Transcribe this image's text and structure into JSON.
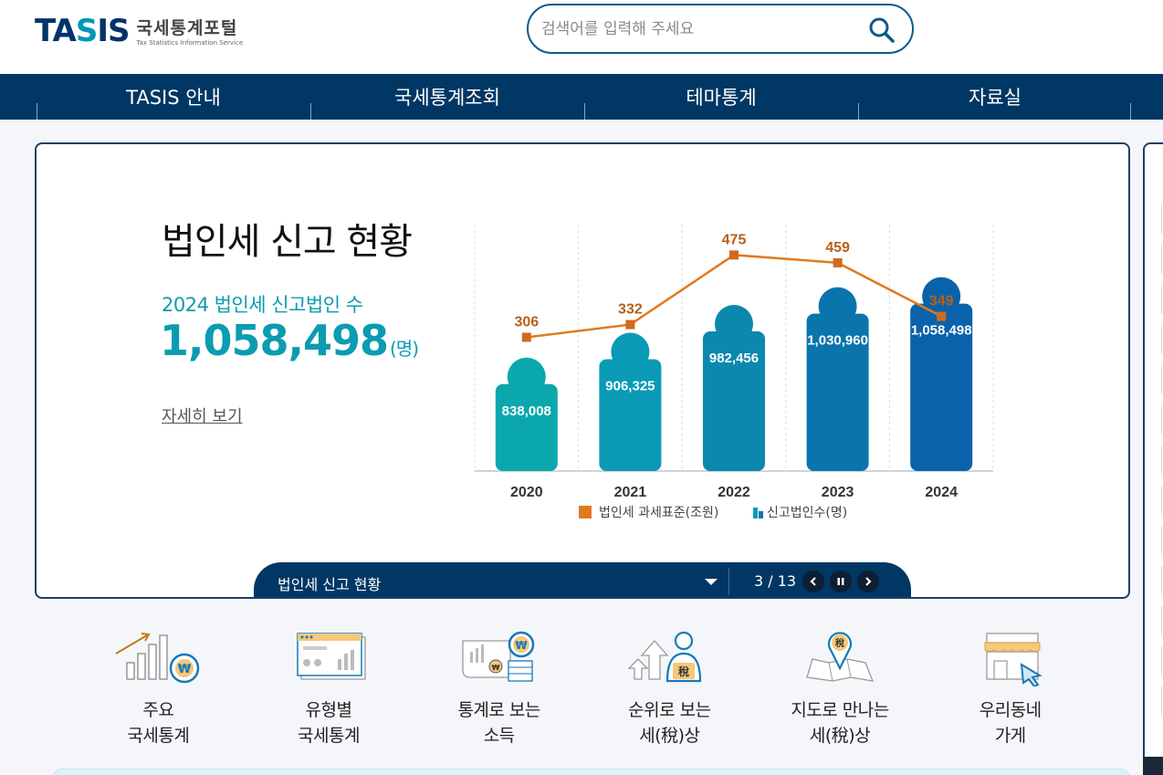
{
  "header": {
    "logo_mark_a": "TA",
    "logo_mark_b": "S",
    "logo_mark_c": "IS",
    "logo_ko": "국세통계포털",
    "logo_en": "Tax Statistics Information Service",
    "search_placeholder": "검색어를 입력해 주세요"
  },
  "nav": {
    "items": [
      {
        "label": "TASIS 안내"
      },
      {
        "label": "국세통계조회"
      },
      {
        "label": "테마통계"
      },
      {
        "label": "자료실"
      }
    ]
  },
  "banner": {
    "title": "법인세 신고 현황",
    "subtitle": "2024 법인세 신고법인 수",
    "value": "1,058,498",
    "unit": "(명)",
    "more_link": "자세히 보기"
  },
  "chart_data": {
    "type": "bar+line",
    "categories": [
      "2020",
      "2021",
      "2022",
      "2023",
      "2024"
    ],
    "series": [
      {
        "name": "신고법인수(명)",
        "kind": "bar",
        "values": [
          838008,
          906325,
          982456,
          1030960,
          1058498
        ],
        "labels": [
          "838,008",
          "906,325",
          "982,456",
          "1,030,960",
          "1,058,498"
        ]
      },
      {
        "name": "법인세 과세표준(조원)",
        "kind": "line",
        "values": [
          306,
          332,
          475,
          459,
          349
        ]
      }
    ],
    "legend_position": "bottom",
    "grid": "vertical dashed",
    "colors": {
      "line": "#e07a1f",
      "bars": [
        "#0aa8ad",
        "#0a9ab6",
        "#0a88ad",
        "#0a74ad",
        "#0a62aa"
      ]
    }
  },
  "slider": {
    "title": "법인세 신고 현황",
    "counter": "3 / 13"
  },
  "quick_menu": [
    {
      "line1": "주요",
      "line2": "국세통계",
      "icon": "chart-coin-icon"
    },
    {
      "line1": "유형별",
      "line2": "국세통계",
      "icon": "dashboard-icon"
    },
    {
      "line1": "통계로 보는",
      "line2": "소득",
      "icon": "income-icon"
    },
    {
      "line1": "순위로 보는",
      "line2": "세(稅)상",
      "icon": "ranking-icon"
    },
    {
      "line1": "지도로 만나는",
      "line2": "세(稅)상",
      "icon": "map-pin-icon"
    },
    {
      "line1": "우리동네",
      "line2": "가게",
      "icon": "store-icon"
    }
  ],
  "icon_glyphs": {
    "won": "₩",
    "tax": "稅"
  }
}
